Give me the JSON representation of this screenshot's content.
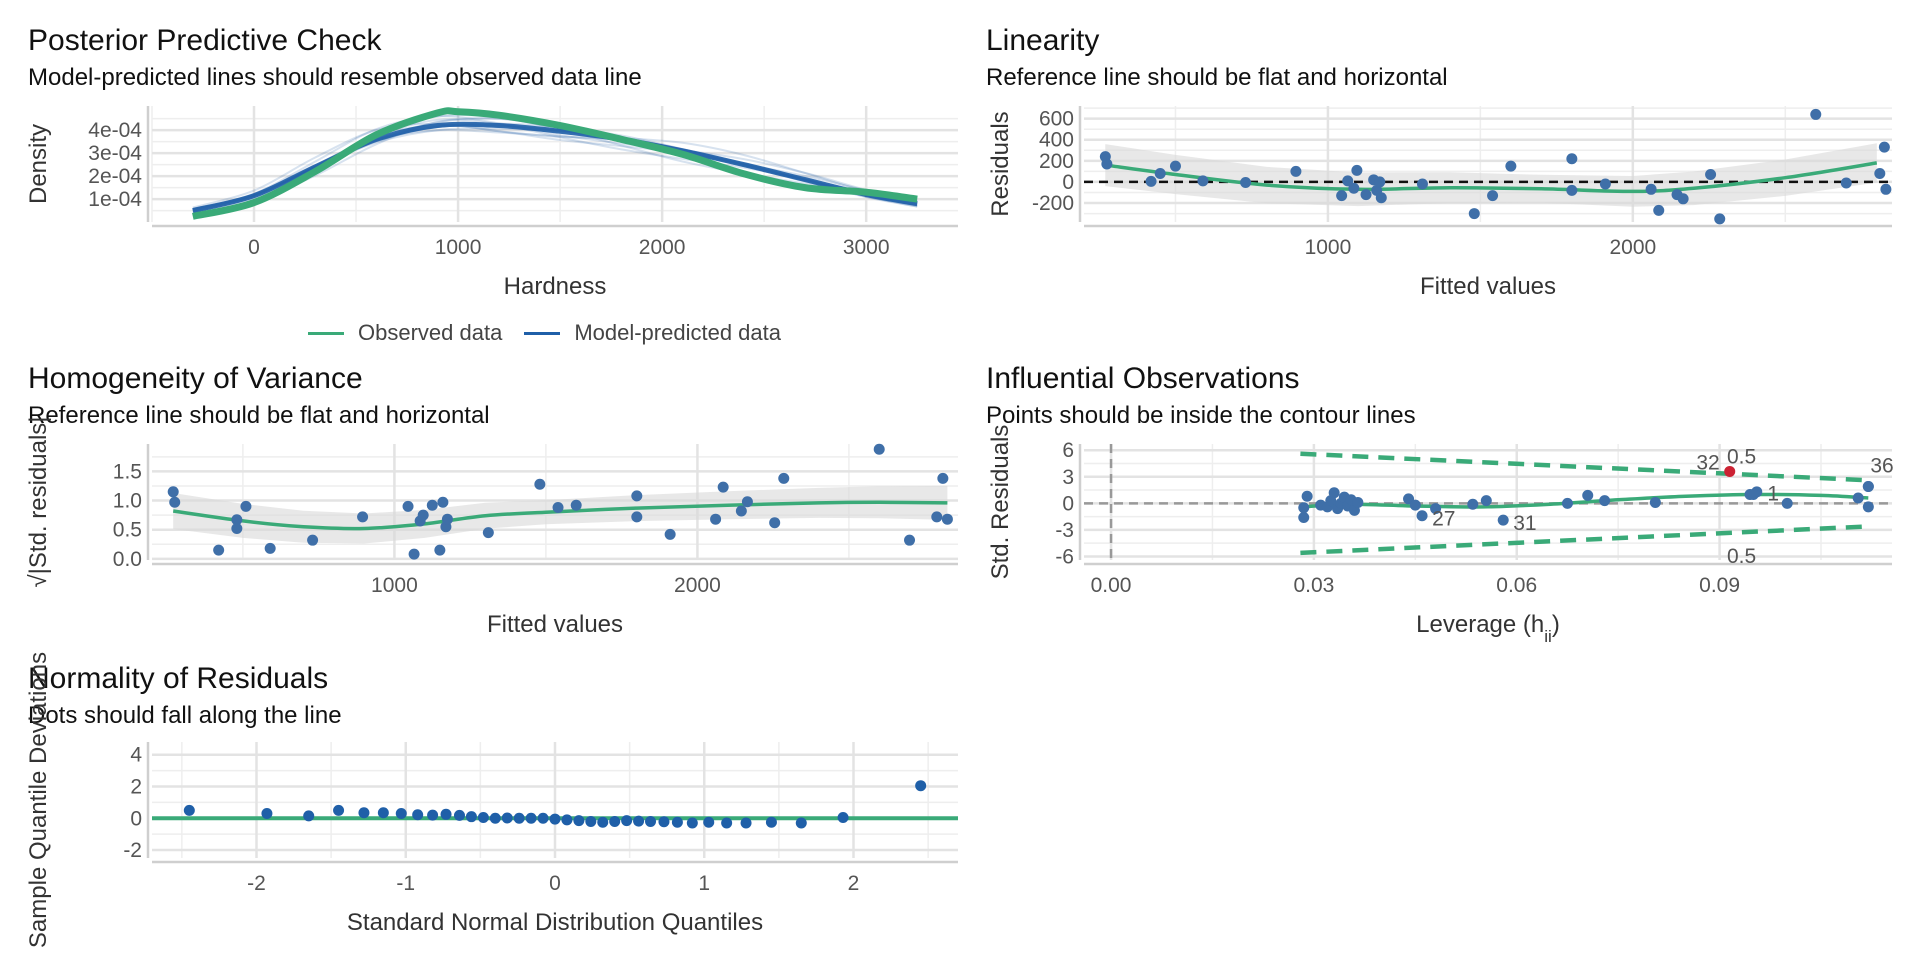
{
  "colors": {
    "observed": "#3aaa78",
    "predicted": "#1f5fa8",
    "point": "#3f6fa8",
    "highlight": "#cc2233",
    "contour": "#3aaa78",
    "grid": "#e3e3e3"
  },
  "legend": {
    "observed": "Observed data",
    "predicted": "Model-predicted data"
  },
  "chart_data": [
    {
      "id": "ppc",
      "type": "line",
      "title": "Posterior Predictive Check",
      "subtitle": "Model-predicted lines should resemble observed data line",
      "xlabel": "Hardness",
      "ylabel": "Density",
      "xlim": [
        -500,
        3450
      ],
      "ylim": [
        5e-07,
        0.000505
      ],
      "xticks": [
        0,
        1000,
        2000,
        3000
      ],
      "yticks": [
        0.0001,
        0.0002,
        0.0003,
        0.0004
      ],
      "ytick_labels": [
        "1e-04",
        "2e-04",
        "3e-04",
        "4e-04"
      ],
      "series": [
        {
          "name": "Observed data",
          "x": [
            -300,
            0,
            300,
            600,
            900,
            1000,
            1200,
            1500,
            1800,
            2100,
            2400,
            2700,
            3000,
            3250
          ],
          "y": [
            2.5e-05,
            8.5e-05,
            0.00022,
            0.00038,
            0.000475,
            0.00048,
            0.000465,
            0.00042,
            0.00036,
            0.000295,
            0.00021,
            0.00015,
            0.00013,
            0.0001
          ]
        },
        {
          "name": "Model-predicted data",
          "x": [
            -300,
            0,
            300,
            600,
            900,
            1200,
            1500,
            1800,
            2100,
            2400,
            2700,
            3000,
            3250
          ],
          "y": [
            5e-05,
            0.000115,
            0.00024,
            0.00036,
            0.00042,
            0.00042,
            0.000395,
            0.00036,
            0.00031,
            0.00025,
            0.000185,
            0.00012,
            8e-05
          ]
        }
      ]
    },
    {
      "id": "linearity",
      "type": "scatter",
      "title": "Linearity",
      "subtitle": "Reference line should be flat and horizontal",
      "xlabel": "Fitted values",
      "ylabel": "Residuals",
      "xlim": [
        200,
        2850
      ],
      "ylim": [
        -380,
        720
      ],
      "xticks": [
        1000,
        2000
      ],
      "yticks": [
        -200,
        0,
        200,
        400,
        600
      ],
      "points": [
        [
          270,
          240
        ],
        [
          275,
          170
        ],
        [
          420,
          5
        ],
        [
          450,
          80
        ],
        [
          500,
          150
        ],
        [
          590,
          10
        ],
        [
          730,
          -5
        ],
        [
          895,
          100
        ],
        [
          1045,
          -130
        ],
        [
          1065,
          10
        ],
        [
          1085,
          -60
        ],
        [
          1095,
          110
        ],
        [
          1125,
          -120
        ],
        [
          1150,
          20
        ],
        [
          1160,
          -80
        ],
        [
          1175,
          -150
        ],
        [
          1170,
          0
        ],
        [
          1310,
          -20
        ],
        [
          1480,
          -300
        ],
        [
          1540,
          -130
        ],
        [
          1600,
          150
        ],
        [
          1800,
          220
        ],
        [
          1800,
          -80
        ],
        [
          1910,
          -20
        ],
        [
          2060,
          -70
        ],
        [
          2085,
          -270
        ],
        [
          2145,
          -120
        ],
        [
          2165,
          -160
        ],
        [
          2255,
          70
        ],
        [
          2285,
          -350
        ],
        [
          2600,
          640
        ],
        [
          2700,
          -10
        ],
        [
          2810,
          80
        ],
        [
          2825,
          330
        ],
        [
          2830,
          -70
        ]
      ],
      "trend": {
        "x": [
          270,
          500,
          800,
          1100,
          1400,
          1700,
          2000,
          2200,
          2500,
          2800
        ],
        "y": [
          160,
          70,
          -30,
          -70,
          -55,
          -65,
          -90,
          -60,
          40,
          180
        ]
      },
      "reference_y": 0
    },
    {
      "id": "homogeneity",
      "type": "scatter",
      "title": "Homogeneity of Variance",
      "subtitle": "Reference line should be flat and horizontal",
      "xlabel": "Fitted values",
      "ylabel": "√|Std. residuals|",
      "xlim": [
        200,
        2860
      ],
      "ylim": [
        -0.02,
        1.97
      ],
      "xticks": [
        1000,
        2000
      ],
      "yticks": [
        0.0,
        0.5,
        1.0,
        1.5
      ],
      "ytick_labels": [
        "0.0",
        "0.5",
        "1.0",
        "1.5"
      ],
      "points": [
        [
          270,
          1.15
        ],
        [
          275,
          0.97
        ],
        [
          420,
          0.15
        ],
        [
          480,
          0.52
        ],
        [
          480,
          0.67
        ],
        [
          510,
          0.9
        ],
        [
          590,
          0.18
        ],
        [
          730,
          0.32
        ],
        [
          895,
          0.72
        ],
        [
          1045,
          0.9
        ],
        [
          1065,
          0.08
        ],
        [
          1085,
          0.65
        ],
        [
          1095,
          0.75
        ],
        [
          1125,
          0.92
        ],
        [
          1150,
          0.15
        ],
        [
          1160,
          0.97
        ],
        [
          1170,
          0.55
        ],
        [
          1175,
          0.68
        ],
        [
          1310,
          0.45
        ],
        [
          1480,
          1.28
        ],
        [
          1540,
          0.88
        ],
        [
          1600,
          0.92
        ],
        [
          1800,
          1.08
        ],
        [
          1800,
          0.72
        ],
        [
          1910,
          0.42
        ],
        [
          2060,
          0.68
        ],
        [
          2085,
          1.23
        ],
        [
          2145,
          0.82
        ],
        [
          2165,
          0.98
        ],
        [
          2255,
          0.62
        ],
        [
          2285,
          1.38
        ],
        [
          2600,
          1.88
        ],
        [
          2700,
          0.32
        ],
        [
          2790,
          0.72
        ],
        [
          2810,
          1.38
        ],
        [
          2825,
          0.68
        ]
      ],
      "trend": {
        "x": [
          270,
          500,
          700,
          900,
          1100,
          1300,
          1500,
          1800,
          2100,
          2400,
          2600,
          2825
        ],
        "y": [
          0.82,
          0.65,
          0.55,
          0.52,
          0.6,
          0.74,
          0.8,
          0.87,
          0.92,
          0.96,
          0.97,
          0.96
        ]
      }
    },
    {
      "id": "influential",
      "type": "scatter",
      "title": "Influential Observations",
      "subtitle": "Points should be inside the contour lines",
      "xlabel": "Leverage (h",
      "xlabel_sub": "ii",
      "xlabel_end": ")",
      "ylabel": "Std. Residuals",
      "xlim": [
        -0.004,
        0.1155
      ],
      "ylim": [
        -6.4,
        6.7
      ],
      "xticks": [
        0.0,
        0.03,
        0.06,
        0.09
      ],
      "xtick_labels": [
        "0.00",
        "0.03",
        "0.06",
        "0.09"
      ],
      "yticks": [
        -6,
        -3,
        0,
        3,
        6
      ],
      "points": [
        [
          0.0285,
          -1.6
        ],
        [
          0.0285,
          -0.5
        ],
        [
          0.029,
          0.8
        ],
        [
          0.031,
          -0.2
        ],
        [
          0.032,
          -0.4
        ],
        [
          0.0325,
          0.3
        ],
        [
          0.033,
          1.2
        ],
        [
          0.0335,
          -0.6
        ],
        [
          0.034,
          0.0
        ],
        [
          0.0345,
          0.7
        ],
        [
          0.035,
          -0.3
        ],
        [
          0.0355,
          0.4
        ],
        [
          0.036,
          -0.8
        ],
        [
          0.0365,
          0.1
        ],
        [
          0.044,
          0.5
        ],
        [
          0.045,
          -0.2
        ],
        [
          0.048,
          -0.6
        ],
        [
          0.0535,
          -0.1
        ],
        [
          0.0555,
          0.3
        ],
        [
          0.0675,
          0.0
        ],
        [
          0.0705,
          0.9
        ],
        [
          0.073,
          0.3
        ],
        [
          0.0805,
          0.1
        ],
        [
          0.0945,
          1.0
        ],
        [
          0.0955,
          1.3
        ],
        [
          0.1,
          0.0
        ],
        [
          0.1105,
          0.6
        ],
        [
          0.112,
          1.9
        ],
        [
          0.112,
          -0.4
        ]
      ],
      "labelled_points": [
        {
          "label": "27",
          "x": 0.046,
          "y": -1.4
        },
        {
          "label": "31",
          "x": 0.058,
          "y": -1.9
        },
        {
          "label": "1",
          "x": 0.095,
          "y": 1.0
        },
        {
          "label": "32",
          "x": 0.0915,
          "y": 3.6
        },
        {
          "label": "36",
          "x": 0.112,
          "y": 1.9
        }
      ],
      "trend": {
        "x": [
          0.0285,
          0.035,
          0.045,
          0.055,
          0.065,
          0.075,
          0.085,
          0.095,
          0.105,
          0.112
        ],
        "y": [
          -0.4,
          -0.1,
          -0.3,
          -0.4,
          -0.1,
          0.4,
          0.8,
          1.0,
          0.9,
          0.6
        ]
      },
      "contours": [
        {
          "label": "0.5",
          "x": [
            0.028,
            0.112
          ],
          "y": [
            5.6,
            2.6
          ]
        },
        {
          "label": "0.5",
          "x": [
            0.028,
            0.112
          ],
          "y": [
            -5.6,
            -2.6
          ]
        }
      ],
      "reference_x": 0.0,
      "reference_y": 0
    },
    {
      "id": "normality",
      "type": "scatter",
      "title": "Normality of Residuals",
      "subtitle": "Dots should fall along the line",
      "xlabel": "Standard Normal Distribution Quantiles",
      "ylabel": "Sample Quantile Deviations",
      "xlim": [
        -2.7,
        2.7
      ],
      "ylim": [
        -2.5,
        4.8
      ],
      "xticks": [
        -2,
        -1,
        0,
        1,
        2
      ],
      "yticks": [
        -2,
        0,
        2,
        4
      ],
      "points": [
        [
          -2.45,
          0.5
        ],
        [
          -1.93,
          0.3
        ],
        [
          -1.65,
          0.15
        ],
        [
          -1.45,
          0.5
        ],
        [
          -1.28,
          0.35
        ],
        [
          -1.15,
          0.35
        ],
        [
          -1.03,
          0.3
        ],
        [
          -0.92,
          0.22
        ],
        [
          -0.82,
          0.2
        ],
        [
          -0.73,
          0.25
        ],
        [
          -0.64,
          0.18
        ],
        [
          -0.56,
          0.1
        ],
        [
          -0.48,
          0.05
        ],
        [
          -0.4,
          0.0
        ],
        [
          -0.32,
          0.02
        ],
        [
          -0.24,
          0.0
        ],
        [
          -0.16,
          0.0
        ],
        [
          -0.08,
          0.0
        ],
        [
          0.0,
          -0.05
        ],
        [
          0.08,
          -0.1
        ],
        [
          0.16,
          -0.15
        ],
        [
          0.24,
          -0.2
        ],
        [
          0.32,
          -0.25
        ],
        [
          0.4,
          -0.2
        ],
        [
          0.48,
          -0.15
        ],
        [
          0.56,
          -0.18
        ],
        [
          0.64,
          -0.2
        ],
        [
          0.73,
          -0.22
        ],
        [
          0.82,
          -0.25
        ],
        [
          0.92,
          -0.3
        ],
        [
          1.03,
          -0.25
        ],
        [
          1.15,
          -0.3
        ],
        [
          1.28,
          -0.3
        ],
        [
          1.45,
          -0.25
        ],
        [
          1.65,
          -0.3
        ],
        [
          1.93,
          0.05
        ],
        [
          2.45,
          2.05
        ]
      ],
      "reference_y": 0
    }
  ]
}
